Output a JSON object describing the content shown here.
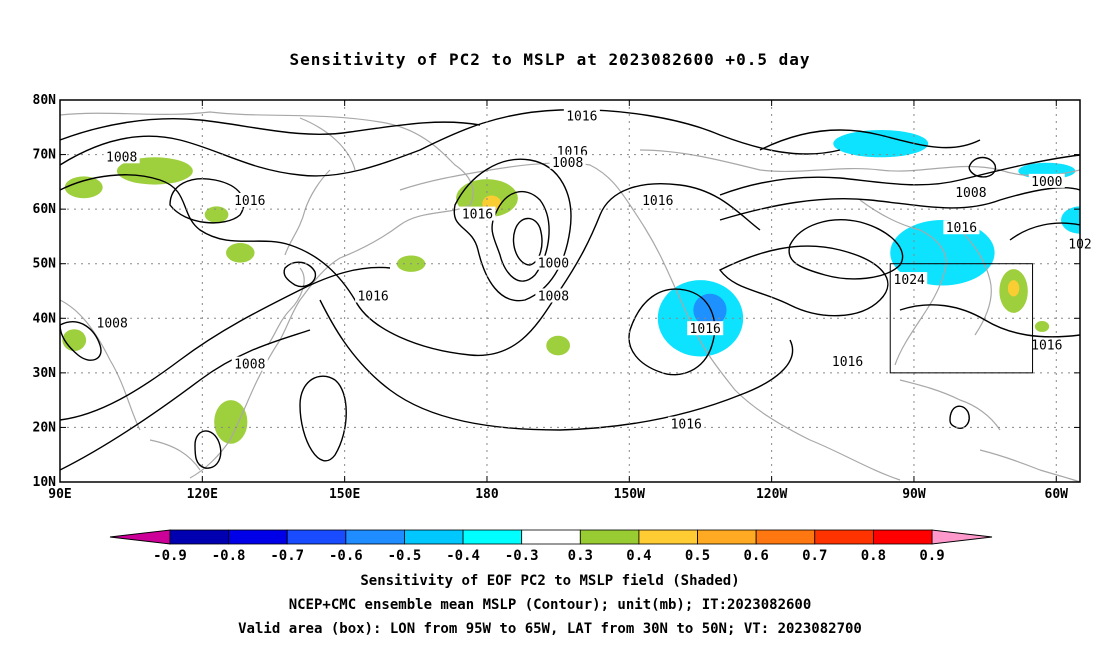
{
  "title": "Sensitivity of PC2 to MSLP at 2023082600 +0.5 day",
  "captions": {
    "line1": "Sensitivity of EOF PC2 to MSLP field (Shaded)",
    "line2": "NCEP+CMC ensemble mean MSLP (Contour); unit(mb); IT:2023082600",
    "line3": "Valid area (box): LON from 95W to 65W, LAT from 30N to 50N; VT: 2023082700"
  },
  "map": {
    "lon_range": [
      90,
      305
    ],
    "lat_range": [
      10,
      80
    ],
    "lat_ticks": [
      {
        "lat": 80,
        "label": "80N"
      },
      {
        "lat": 70,
        "label": "70N"
      },
      {
        "lat": 60,
        "label": "60N"
      },
      {
        "lat": 50,
        "label": "50N"
      },
      {
        "lat": 40,
        "label": "40N"
      },
      {
        "lat": 30,
        "label": "30N"
      },
      {
        "lat": 20,
        "label": "20N"
      },
      {
        "lat": 10,
        "label": "10N"
      }
    ],
    "lon_ticks": [
      {
        "lon": 90,
        "label": "90E"
      },
      {
        "lon": 120,
        "label": "120E"
      },
      {
        "lon": 150,
        "label": "150E"
      },
      {
        "lon": 180,
        "label": "180"
      },
      {
        "lon": 210,
        "label": "150W"
      },
      {
        "lon": 240,
        "label": "120W"
      },
      {
        "lon": 270,
        "label": "90W"
      },
      {
        "lon": 300,
        "label": "60W"
      }
    ],
    "valid_box": {
      "lon": [
        265,
        295
      ],
      "lat": [
        30,
        50
      ]
    },
    "contour_labels": [
      {
        "lon": 200,
        "lat": 77,
        "text": "1016"
      },
      {
        "lon": 198,
        "lat": 70.5,
        "text": "1016"
      },
      {
        "lon": 197,
        "lat": 68.5,
        "text": "1008"
      },
      {
        "lon": 103,
        "lat": 69.5,
        "text": "1008"
      },
      {
        "lon": 130,
        "lat": 61.5,
        "text": "1016"
      },
      {
        "lon": 178,
        "lat": 59,
        "text": "1016"
      },
      {
        "lon": 216,
        "lat": 61.5,
        "text": "1016"
      },
      {
        "lon": 194,
        "lat": 50,
        "text": "1000"
      },
      {
        "lon": 194,
        "lat": 44,
        "text": "1008"
      },
      {
        "lon": 156,
        "lat": 44,
        "text": "1016"
      },
      {
        "lon": 101,
        "lat": 39,
        "text": "1008"
      },
      {
        "lon": 130,
        "lat": 31.5,
        "text": "1008"
      },
      {
        "lon": 226,
        "lat": 38,
        "text": "1016"
      },
      {
        "lon": 222,
        "lat": 20.5,
        "text": "1016"
      },
      {
        "lon": 256,
        "lat": 32,
        "text": "1016"
      },
      {
        "lon": 280,
        "lat": 56.5,
        "text": "1016"
      },
      {
        "lon": 282,
        "lat": 63,
        "text": "1008"
      },
      {
        "lon": 298,
        "lat": 65,
        "text": "1000"
      },
      {
        "lon": 269,
        "lat": 47,
        "text": "1024"
      },
      {
        "lon": 298,
        "lat": 35,
        "text": "1016"
      },
      {
        "lon": 305,
        "lat": 53.5,
        "text": "102"
      }
    ]
  },
  "colorbar": {
    "labels": [
      "-0.9",
      "-0.8",
      "-0.7",
      "-0.6",
      "-0.5",
      "-0.4",
      "-0.3",
      "0.3",
      "0.4",
      "0.5",
      "0.6",
      "0.7",
      "0.8",
      "0.9"
    ],
    "colors": [
      "#0000b0",
      "#0000e8",
      "#1a4cff",
      "#1f8cff",
      "#00c8ff",
      "#00ffff",
      "#ffffff",
      "#99cc33",
      "#ffcc33",
      "#ffaa22",
      "#ff7711",
      "#ff3300",
      "#ff0000"
    ],
    "low_end_color": "#cc0099",
    "high_end_color": "#ff99cc"
  },
  "shading": [
    {
      "color": "#00e0ff",
      "lon": 225,
      "lat": 40,
      "rx": 9,
      "ry": 7
    },
    {
      "color": "#1f8cff",
      "lon": 227,
      "lat": 41.5,
      "rx": 3.5,
      "ry": 3
    },
    {
      "color": "#00e0ff",
      "lon": 276,
      "lat": 52,
      "rx": 11,
      "ry": 6
    },
    {
      "color": "#00e0ff",
      "lon": 263,
      "lat": 72,
      "rx": 10,
      "ry": 2.5
    },
    {
      "color": "#00e0ff",
      "lon": 298,
      "lat": 67,
      "rx": 6,
      "ry": 1.5
    },
    {
      "color": "#00e0ff",
      "lon": 305,
      "lat": 58,
      "rx": 4,
      "ry": 2.5
    },
    {
      "color": "#99cc33",
      "lon": 180,
      "lat": 62,
      "rx": 6.5,
      "ry": 3.5
    },
    {
      "color": "#ffcc33",
      "lon": 181,
      "lat": 61,
      "rx": 2,
      "ry": 1.5
    },
    {
      "color": "#99cc33",
      "lon": 110,
      "lat": 67,
      "rx": 8,
      "ry": 2.5
    },
    {
      "color": "#99cc33",
      "lon": 95,
      "lat": 64,
      "rx": 4,
      "ry": 2
    },
    {
      "color": "#99cc33",
      "lon": 123,
      "lat": 59,
      "rx": 2.5,
      "ry": 1.5
    },
    {
      "color": "#99cc33",
      "lon": 128,
      "lat": 52,
      "rx": 3,
      "ry": 1.8
    },
    {
      "color": "#99cc33",
      "lon": 126,
      "lat": 21,
      "rx": 3.5,
      "ry": 4
    },
    {
      "color": "#99cc33",
      "lon": 93,
      "lat": 36,
      "rx": 2.5,
      "ry": 2
    },
    {
      "color": "#99cc33",
      "lon": 195,
      "lat": 35,
      "rx": 2.5,
      "ry": 1.8
    },
    {
      "color": "#99cc33",
      "lon": 291,
      "lat": 45,
      "rx": 3,
      "ry": 4
    },
    {
      "color": "#ffcc33",
      "lon": 291,
      "lat": 45.5,
      "rx": 1.2,
      "ry": 1.5
    },
    {
      "color": "#99cc33",
      "lon": 297,
      "lat": 38.5,
      "rx": 1.5,
      "ry": 1
    },
    {
      "color": "#99cc33",
      "lon": 164,
      "lat": 50,
      "rx": 3,
      "ry": 1.5
    }
  ]
}
